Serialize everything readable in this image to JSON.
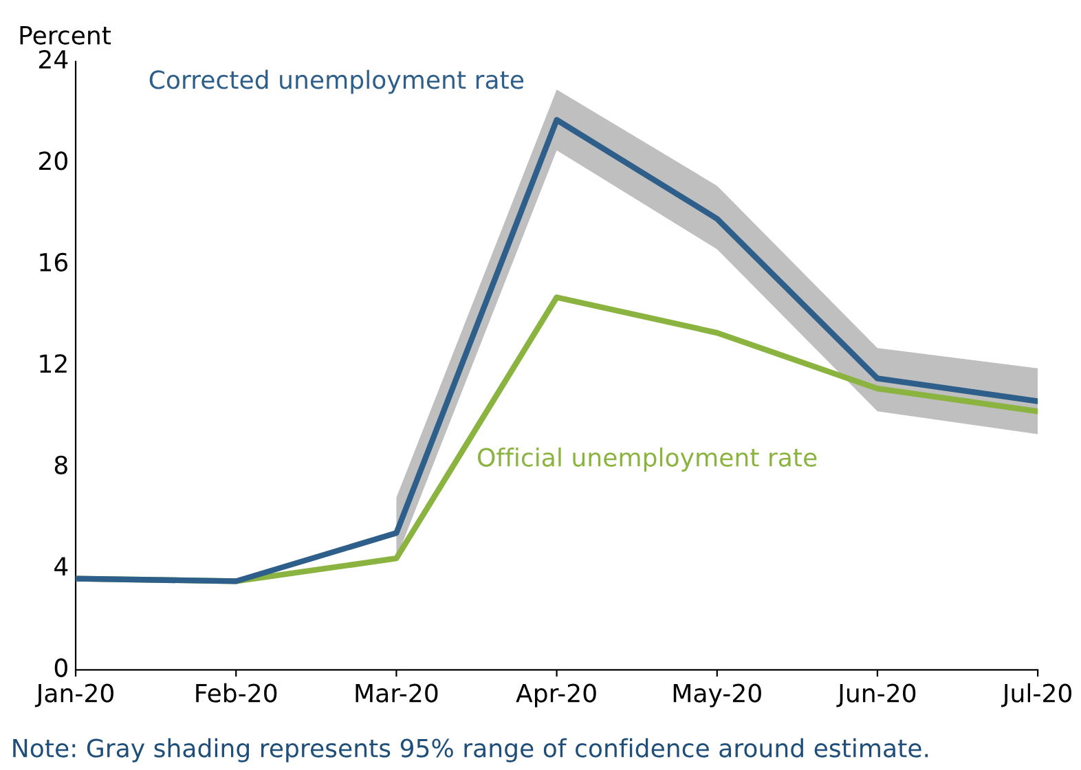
{
  "chart_data": {
    "type": "line",
    "ylabel": "Percent",
    "categories": [
      "Jan-20",
      "Feb-20",
      "Mar-20",
      "Apr-20",
      "May-20",
      "Jun-20",
      "Jul-20"
    ],
    "series": [
      {
        "name": "Corrected unemployment rate",
        "color": "#2e5f8a",
        "values": [
          3.6,
          3.5,
          5.4,
          21.7,
          17.8,
          11.5,
          10.6
        ],
        "lower": [
          null,
          null,
          4.4,
          20.5,
          16.6,
          10.2,
          9.3
        ],
        "upper": [
          null,
          null,
          6.8,
          22.9,
          19.1,
          12.7,
          11.9
        ]
      },
      {
        "name": "Official unemployment rate",
        "color": "#8ab33f",
        "values": [
          3.6,
          3.5,
          4.4,
          14.7,
          13.3,
          11.1,
          10.2
        ]
      }
    ],
    "ylim": [
      0,
      24
    ],
    "yticks": [
      0,
      4,
      8,
      12,
      16,
      20,
      24
    ],
    "grid": false,
    "legend": false,
    "line_style": "solid",
    "marker": "none",
    "annotations": [
      "Note: Gray shading represents 95% range of confidence around estimate."
    ]
  }
}
